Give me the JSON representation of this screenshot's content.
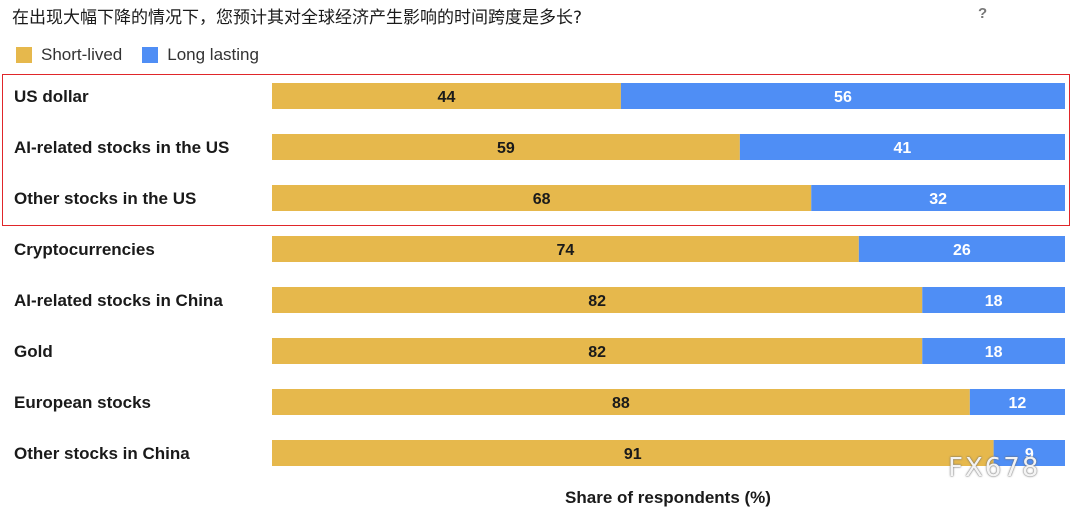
{
  "title": "在出现大幅下降的情况下，您预计其对全球经济产生影响的时间跨度是多长?",
  "help_label": "?",
  "watermark": "FX678",
  "colors": {
    "short_lived": "#e6b84c",
    "long_lasting": "#4f8ef5",
    "highlight_border": "#e0262a"
  },
  "chart_data": {
    "type": "bar",
    "orientation": "horizontal",
    "stacked": true,
    "categories": [
      "US dollar",
      "AI-related stocks in the US",
      "Other stocks in the US",
      "Cryptocurrencies",
      "AI-related stocks in China",
      "Gold",
      "European stocks",
      "Other stocks in China"
    ],
    "series": [
      {
        "name": "Short-lived",
        "values": [
          44,
          59,
          68,
          74,
          82,
          82,
          88,
          91
        ]
      },
      {
        "name": "Long lasting",
        "values": [
          56,
          41,
          32,
          26,
          18,
          18,
          12,
          9
        ]
      }
    ],
    "xlabel": "Share of respondents (%)",
    "xlim": [
      0,
      100
    ],
    "highlighted_categories": [
      "US dollar",
      "AI-related stocks in the US",
      "Other stocks in the US"
    ],
    "legend_position": "top-left",
    "grid": false
  }
}
